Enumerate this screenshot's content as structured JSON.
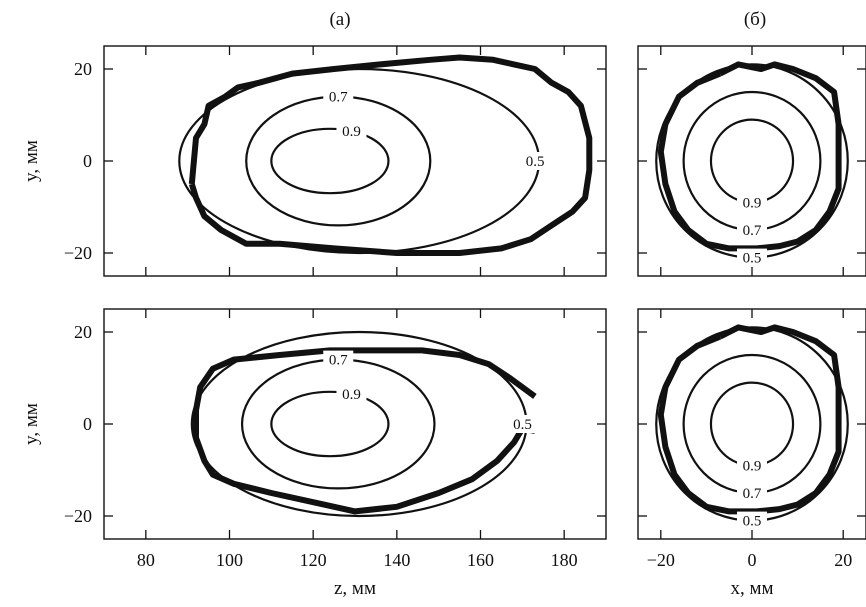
{
  "panel_labels": [
    "(a)",
    "(б)"
  ],
  "chart_data": [
    {
      "type": "contour",
      "panel": "(a)",
      "row": "top",
      "xlabel": "",
      "ylabel": "y, мм",
      "xlim": [
        70,
        190
      ],
      "ylim": [
        -25,
        25
      ],
      "xticks": [
        80,
        100,
        120,
        140,
        160,
        180
      ],
      "yticks": [
        -20,
        0,
        20
      ],
      "show_xticklabels": false,
      "levels": [
        {
          "value": "0.9",
          "center": [
            124,
            0
          ],
          "half_width": [
            14,
            7
          ]
        },
        {
          "value": "0.7",
          "center": [
            126,
            0
          ],
          "half_width": [
            22,
            14
          ]
        },
        {
          "value": "0.5",
          "center": [
            131,
            0
          ],
          "half_width": [
            43,
            20
          ]
        }
      ],
      "measured_contour": [
        [
          91,
          -5
        ],
        [
          92,
          5
        ],
        [
          94,
          8
        ],
        [
          95,
          12
        ],
        [
          99,
          14
        ],
        [
          102,
          16
        ],
        [
          107,
          17
        ],
        [
          115,
          19
        ],
        [
          125,
          20
        ],
        [
          136,
          21
        ],
        [
          148,
          22
        ],
        [
          155,
          22.5
        ],
        [
          163,
          22
        ],
        [
          168,
          21
        ],
        [
          173,
          20
        ],
        [
          177,
          17
        ],
        [
          181,
          15
        ],
        [
          184,
          12
        ],
        [
          186,
          5
        ],
        [
          186,
          -2
        ],
        [
          185,
          -8
        ],
        [
          182,
          -11
        ],
        [
          177,
          -14
        ],
        [
          172,
          -17
        ],
        [
          165,
          -19
        ],
        [
          155,
          -20
        ],
        [
          140,
          -20
        ],
        [
          125,
          -19
        ],
        [
          112,
          -18
        ],
        [
          104,
          -18
        ],
        [
          98,
          -15
        ],
        [
          94,
          -12
        ],
        [
          92,
          -8
        ],
        [
          91,
          -5
        ]
      ]
    },
    {
      "type": "contour",
      "panel": "(б)",
      "row": "top",
      "xlabel": "",
      "ylabel": "",
      "xlim": [
        -25,
        25
      ],
      "ylim": [
        -25,
        25
      ],
      "xticks": [
        -20,
        0,
        20
      ],
      "yticks": [
        -20,
        0,
        20
      ],
      "show_xticklabels": false,
      "levels": [
        {
          "value": "0.9",
          "center": [
            0,
            0
          ],
          "half_width": [
            9,
            9
          ]
        },
        {
          "value": "0.7",
          "center": [
            0,
            0
          ],
          "half_width": [
            15,
            15
          ]
        },
        {
          "value": "0.5",
          "center": [
            0,
            0
          ],
          "half_width": [
            21,
            21
          ]
        }
      ],
      "measured_contour": [
        [
          -7,
          19
        ],
        [
          -3,
          21
        ],
        [
          2,
          20
        ],
        [
          5,
          21
        ],
        [
          9,
          20
        ],
        [
          14,
          18
        ],
        [
          18,
          15
        ],
        [
          19,
          8
        ],
        [
          19,
          0
        ],
        [
          19,
          -6
        ],
        [
          17,
          -11
        ],
        [
          14,
          -15
        ],
        [
          10,
          -17.5
        ],
        [
          6,
          -18.5
        ],
        [
          1,
          -19
        ],
        [
          -5,
          -19
        ],
        [
          -10,
          -18
        ],
        [
          -14,
          -15
        ],
        [
          -17,
          -11
        ],
        [
          -19,
          -5
        ],
        [
          -20,
          2
        ],
        [
          -19,
          8
        ],
        [
          -16,
          14
        ],
        [
          -12,
          17
        ],
        [
          -7,
          19
        ]
      ]
    },
    {
      "type": "contour",
      "panel": "(a)",
      "row": "bottom",
      "xlabel": "z, мм",
      "ylabel": "y, мм",
      "xlim": [
        70,
        190
      ],
      "ylim": [
        -25,
        25
      ],
      "xticks": [
        80,
        100,
        120,
        140,
        160,
        180
      ],
      "yticks": [
        -20,
        0,
        20
      ],
      "show_xticklabels": true,
      "levels": [
        {
          "value": "0.9",
          "center": [
            124,
            0
          ],
          "half_width": [
            14,
            7
          ]
        },
        {
          "value": "0.7",
          "center": [
            126,
            0
          ],
          "half_width": [
            23,
            14
          ]
        },
        {
          "value": "0.5",
          "center": [
            131,
            0
          ],
          "half_width": [
            40,
            20
          ]
        }
      ],
      "measured_contour": [
        [
          173,
          -1.5
        ],
        [
          170,
          -1
        ],
        [
          168,
          -4
        ],
        [
          164,
          -8
        ],
        [
          158,
          -12
        ],
        [
          150,
          -15
        ],
        [
          140,
          -18
        ],
        [
          130,
          -19
        ],
        [
          120,
          -17
        ],
        [
          110,
          -15
        ],
        [
          101,
          -13
        ],
        [
          96,
          -11
        ],
        [
          94,
          -8
        ],
        [
          92,
          -3
        ],
        [
          92,
          3
        ],
        [
          93,
          8
        ],
        [
          96,
          12
        ],
        [
          101,
          14
        ],
        [
          112,
          15
        ],
        [
          124,
          16
        ],
        [
          136,
          16
        ],
        [
          146,
          16
        ],
        [
          155,
          15
        ],
        [
          162,
          13
        ],
        [
          167,
          10
        ],
        [
          170,
          8
        ],
        [
          173,
          6
        ]
      ]
    },
    {
      "type": "contour",
      "panel": "(б)",
      "row": "bottom",
      "xlabel": "x, мм",
      "ylabel": "",
      "xlim": [
        -25,
        25
      ],
      "ylim": [
        -25,
        25
      ],
      "xticks": [
        -20,
        0,
        20
      ],
      "yticks": [
        -20,
        0,
        20
      ],
      "show_xticklabels": true,
      "levels": [
        {
          "value": "0.9",
          "center": [
            0,
            0
          ],
          "half_width": [
            9,
            9
          ]
        },
        {
          "value": "0.7",
          "center": [
            0,
            0
          ],
          "half_width": [
            15,
            15
          ]
        },
        {
          "value": "0.5",
          "center": [
            0,
            0
          ],
          "half_width": [
            21,
            21
          ]
        }
      ],
      "measured_contour": [
        [
          -7,
          19
        ],
        [
          -3,
          21
        ],
        [
          2,
          20
        ],
        [
          5,
          21
        ],
        [
          9,
          20
        ],
        [
          14,
          18
        ],
        [
          18,
          15
        ],
        [
          19,
          8
        ],
        [
          19,
          0
        ],
        [
          19,
          -6
        ],
        [
          17,
          -11
        ],
        [
          14,
          -15
        ],
        [
          10,
          -17.5
        ],
        [
          6,
          -18.5
        ],
        [
          1,
          -19
        ],
        [
          -5,
          -19
        ],
        [
          -10,
          -18
        ],
        [
          -14,
          -15
        ],
        [
          -17,
          -11
        ],
        [
          -19,
          -5
        ],
        [
          -20,
          2
        ],
        [
          -19,
          8
        ],
        [
          -16,
          14
        ],
        [
          -12,
          17
        ],
        [
          -7,
          19
        ]
      ]
    }
  ]
}
